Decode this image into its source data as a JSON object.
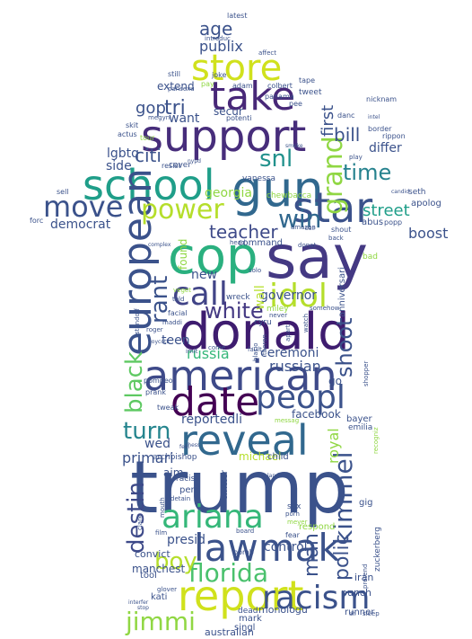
{
  "words": [
    {
      "t": "trump",
      "c": "#3b528b"
    },
    {
      "t": "say",
      "c": "#443983"
    },
    {
      "t": "donald",
      "c": "#3e1c6f"
    },
    {
      "t": "cop",
      "c": "#2ab07f"
    },
    {
      "t": "american",
      "c": "#3e4a89"
    },
    {
      "t": "gun",
      "c": "#31688e"
    },
    {
      "t": "school",
      "c": "#1f9e89"
    },
    {
      "t": "support",
      "c": "#472d7b"
    },
    {
      "t": "reveal",
      "c": "#31688e"
    },
    {
      "t": "report",
      "c": "#d0e11c"
    },
    {
      "t": "lawmak",
      "c": "#3b528b"
    },
    {
      "t": "european",
      "c": "#3b528b"
    },
    {
      "t": "date",
      "c": "#440154"
    },
    {
      "t": "star",
      "c": "#3b528b"
    },
    {
      "t": "take",
      "c": "#482878"
    },
    {
      "t": "store",
      "c": "#d0e11c"
    },
    {
      "t": "ariana",
      "c": "#35b779"
    },
    {
      "t": "peopl",
      "c": "#3b528b"
    },
    {
      "t": "call",
      "c": "#414487"
    },
    {
      "t": "idol",
      "c": "#b5de2b"
    },
    {
      "t": "racism",
      "c": "#3b528b"
    },
    {
      "t": "power",
      "c": "#b5de2b"
    },
    {
      "t": "move",
      "c": "#3b528b"
    },
    {
      "t": "grand",
      "c": "#90d743"
    },
    {
      "t": "jimmi",
      "c": "#90d743"
    },
    {
      "t": "kimmel",
      "c": "#3b528b"
    },
    {
      "t": "florida",
      "c": "#4ac16d"
    },
    {
      "t": "win",
      "c": "#31688e"
    },
    {
      "t": "boy",
      "c": "#b5de2b"
    },
    {
      "t": "time",
      "c": "#26828e"
    },
    {
      "t": "turn",
      "c": "#25858e"
    },
    {
      "t": "white",
      "c": "#443983"
    },
    {
      "t": "black",
      "c": "#5ec962"
    },
    {
      "t": "destin",
      "c": "#3e4a89"
    },
    {
      "t": "rant",
      "c": "#3b528b"
    },
    {
      "t": "shoot",
      "c": "#3b528b"
    },
    {
      "t": "snl",
      "c": "#21918c"
    },
    {
      "t": "teacher",
      "c": "#3e4a89"
    },
    {
      "t": "polic",
      "c": "#3b528b"
    },
    {
      "t": "man",
      "c": "#3b528b"
    },
    {
      "t": "age",
      "c": "#3b528b"
    },
    {
      "t": "tri",
      "c": "#3b528b"
    },
    {
      "t": "citi",
      "c": "#3b528b"
    },
    {
      "t": "bill",
      "c": "#3b528b"
    },
    {
      "t": "gop",
      "c": "#3b528b"
    },
    {
      "t": "street",
      "c": "#1f9e89"
    },
    {
      "t": "publix",
      "c": "#3b528b"
    },
    {
      "t": "first",
      "c": "#3b528b"
    },
    {
      "t": "russia",
      "c": "#35b779"
    },
    {
      "t": "russian",
      "c": "#3b528b"
    },
    {
      "t": "boost",
      "c": "#3b528b"
    },
    {
      "t": "royal",
      "c": "#90d743"
    },
    {
      "t": "primari",
      "c": "#3b528b"
    },
    {
      "t": "reportedli",
      "c": "#3b528b"
    },
    {
      "t": "ceremoni",
      "c": "#3b528b"
    },
    {
      "t": "wed",
      "c": "#3b528b"
    },
    {
      "t": "presid",
      "c": "#3b528b"
    },
    {
      "t": "control",
      "c": "#3b528b"
    },
    {
      "t": "democrat",
      "c": "#3b528b"
    },
    {
      "t": "teen",
      "c": "#3b528b"
    },
    {
      "t": "want",
      "c": "#3b528b"
    },
    {
      "t": "differ",
      "c": "#3b528b"
    },
    {
      "t": "georgia",
      "c": "#90d743"
    },
    {
      "t": "lgbtq",
      "c": "#3b528b"
    },
    {
      "t": "side",
      "c": "#3b528b"
    },
    {
      "t": "governor",
      "c": "#3b528b"
    },
    {
      "t": "wall",
      "c": "#b5de2b"
    },
    {
      "t": "new",
      "c": "#3b528b"
    },
    {
      "t": "found",
      "c": "#90d743"
    },
    {
      "t": "michael",
      "c": "#b5de2b"
    },
    {
      "t": "facebook",
      "c": "#3b528b"
    },
    {
      "t": "secur",
      "c": "#3b528b"
    },
    {
      "t": "extend",
      "c": "#3b528b"
    },
    {
      "t": "go",
      "c": "#3b528b"
    },
    {
      "t": "aim",
      "c": "#3b528b"
    },
    {
      "t": "manchest",
      "c": "#3b528b"
    },
    {
      "t": "convict",
      "c": "#3b528b"
    },
    {
      "t": "monologu",
      "c": "#3b528b"
    },
    {
      "t": "australian",
      "c": "#3b528b"
    },
    {
      "t": "iran",
      "c": "#3b528b"
    },
    {
      "t": "punch",
      "c": "#3b528b"
    },
    {
      "t": "runner",
      "c": "#3b528b"
    },
    {
      "t": "singl",
      "c": "#3b528b"
    },
    {
      "t": "mark",
      "c": "#3b528b"
    },
    {
      "t": "dead",
      "c": "#3b528b"
    },
    {
      "t": "kati",
      "c": "#3b528b"
    },
    {
      "t": "tool",
      "c": "#3b528b"
    },
    {
      "t": "perri",
      "c": "#3b528b"
    },
    {
      "t": "child",
      "c": "#3b528b"
    },
    {
      "t": "twitter",
      "c": "#3b528b"
    },
    {
      "t": "racist",
      "c": "#3b528b"
    },
    {
      "t": "archbishop",
      "c": "#3b528b"
    },
    {
      "t": "zuckerberg",
      "c": "#3b528b"
    },
    {
      "t": "respond",
      "c": "#90d743"
    },
    {
      "t": "gig",
      "c": "#3b528b"
    },
    {
      "t": "sex",
      "c": "#3b528b"
    },
    {
      "t": "bayer",
      "c": "#3b528b"
    },
    {
      "t": "emilia",
      "c": "#3b528b"
    },
    {
      "t": "apolog",
      "c": "#3b528b"
    },
    {
      "t": "seth",
      "c": "#3b528b"
    },
    {
      "t": "abus",
      "c": "#3b528b"
    },
    {
      "t": "popp",
      "c": "#3b528b"
    },
    {
      "t": "bad",
      "c": "#90d743"
    },
    {
      "t": "anniversari",
      "c": "#3b528b"
    },
    {
      "t": "command",
      "c": "#3b528b"
    },
    {
      "t": "wreck",
      "c": "#3b528b"
    },
    {
      "t": "miley",
      "c": "#90d743"
    },
    {
      "t": "cyru",
      "c": "#3b528b"
    },
    {
      "t": "cover",
      "c": "#3b528b"
    },
    {
      "t": "chewbacca",
      "c": "#90d743"
    },
    {
      "t": "vanessa",
      "c": "#3b528b"
    },
    {
      "t": "adam",
      "c": "#3b528b"
    },
    {
      "t": "colbert",
      "c": "#3b528b"
    },
    {
      "t": "tweet",
      "c": "#3b528b"
    },
    {
      "t": "tape",
      "c": "#3b528b"
    },
    {
      "t": "joke",
      "c": "#3b528b"
    },
    {
      "t": "potenti",
      "c": "#3b528b"
    },
    {
      "t": "pee",
      "c": "#3b528b"
    },
    {
      "t": "danc",
      "c": "#3b528b"
    },
    {
      "t": "tour",
      "c": "#90d743"
    },
    {
      "t": "skit",
      "c": "#3b528b"
    },
    {
      "t": "actus",
      "c": "#3b528b"
    },
    {
      "t": "megyn",
      "c": "#3b528b"
    },
    {
      "t": "resist",
      "c": "#3b528b"
    },
    {
      "t": "forc",
      "c": "#3b528b"
    },
    {
      "t": "sell",
      "c": "#3b528b"
    },
    {
      "t": "latest",
      "c": "#3b528b"
    },
    {
      "t": "introduc",
      "c": "#3b528b"
    },
    {
      "t": "affect",
      "c": "#3b528b"
    },
    {
      "t": "nicknam",
      "c": "#3b528b"
    },
    {
      "t": "border",
      "c": "#3b528b"
    },
    {
      "t": "rippon",
      "c": "#3b528b"
    },
    {
      "t": "still",
      "c": "#3b528b"
    },
    {
      "t": "pansexu",
      "c": "#3b528b"
    },
    {
      "t": "pay",
      "c": "#90d743"
    },
    {
      "t": "panama",
      "c": "#3b528b"
    },
    {
      "t": "shout",
      "c": "#3b528b"
    },
    {
      "t": "amazon",
      "c": "#3b528b"
    },
    {
      "t": "donat",
      "c": "#3b528b"
    },
    {
      "t": "back",
      "c": "#3b528b"
    },
    {
      "t": "told",
      "c": "#3b528b"
    },
    {
      "t": "veget",
      "c": "#90d743"
    },
    {
      "t": "facial",
      "c": "#3b528b"
    },
    {
      "t": "maddi",
      "c": "#3b528b"
    },
    {
      "t": "standoff",
      "c": "#3b528b"
    },
    {
      "t": "roger",
      "c": "#3b528b"
    },
    {
      "t": "boycott",
      "c": "#3b528b"
    },
    {
      "t": "imit",
      "c": "#3b528b"
    },
    {
      "t": "come",
      "c": "#3b528b"
    },
    {
      "t": "fault",
      "c": "#3b528b"
    },
    {
      "t": "apart",
      "c": "#3b528b"
    },
    {
      "t": "watch",
      "c": "#3b528b"
    },
    {
      "t": "never",
      "c": "#3b528b"
    },
    {
      "t": "somehow",
      "c": "#3b528b"
    },
    {
      "t": "solo",
      "c": "#3b528b"
    },
    {
      "t": "head",
      "c": "#3b528b"
    },
    {
      "t": "prank",
      "c": "#3b528b"
    },
    {
      "t": "tweak",
      "c": "#3b528b"
    },
    {
      "t": "pompeo",
      "c": "#3b528b"
    },
    {
      "t": "theron",
      "c": "#3b528b"
    },
    {
      "t": "blasio",
      "c": "#3b528b"
    },
    {
      "t": "messag",
      "c": "#90d743"
    },
    {
      "t": "clark",
      "c": "#3b528b"
    },
    {
      "t": "film",
      "c": "#3b528b"
    },
    {
      "t": "mouth",
      "c": "#3b528b"
    },
    {
      "t": "glover",
      "c": "#3b528b"
    },
    {
      "t": "stop",
      "c": "#3b528b"
    },
    {
      "t": "interfer",
      "c": "#3b528b"
    },
    {
      "t": "bomb",
      "c": "#3b528b"
    },
    {
      "t": "board",
      "c": "#3b528b"
    },
    {
      "t": "fear",
      "c": "#3b528b"
    },
    {
      "t": "porn",
      "c": "#3b528b"
    },
    {
      "t": "meyer",
      "c": "#90d743"
    },
    {
      "t": "pretend",
      "c": "#3b528b"
    },
    {
      "t": "sleep",
      "c": "#3b528b"
    },
    {
      "t": "detain",
      "c": "#3b528b"
    },
    {
      "t": "recogniz",
      "c": "#90d743"
    },
    {
      "t": "lando",
      "c": "#3b528b"
    },
    {
      "t": "shopper",
      "c": "#3b528b"
    },
    {
      "t": "complex",
      "c": "#3b528b"
    },
    {
      "t": "nypd",
      "c": "#3b528b"
    },
    {
      "t": "smoke",
      "c": "#3b528b"
    },
    {
      "t": "ball",
      "c": "#3b528b"
    },
    {
      "t": "intel",
      "c": "#3b528b"
    },
    {
      "t": "play",
      "c": "#3b528b"
    },
    {
      "t": "candid",
      "c": "#3b528b"
    },
    {
      "t": "chess",
      "c": "#3b528b"
    },
    {
      "t": "feel",
      "c": "#3b528b"
    },
    {
      "t": "dh",
      "c": "#3b528b"
    }
  ]
}
